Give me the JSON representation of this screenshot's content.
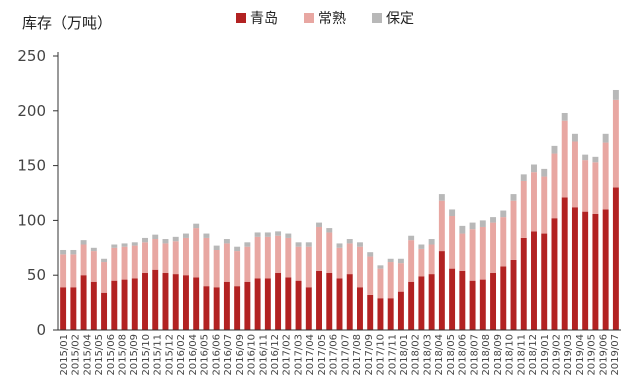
{
  "chart_data": {
    "type": "bar",
    "stacked": true,
    "ylabel": "库存（万吨）",
    "ylim": [
      0,
      250
    ],
    "yticks": [
      0,
      50,
      100,
      150,
      200,
      250
    ],
    "grid": false,
    "legend_position": "top",
    "categories": [
      "2015/01",
      "2015/02",
      "2015/03",
      "2015/04",
      "2015/05",
      "2015/06",
      "2015/07",
      "2015/08",
      "2015/09",
      "2015/10",
      "2015/11",
      "2015/12",
      "2016/01",
      "2016/02",
      "2016/03",
      "2016/04",
      "2016/05",
      "2016/06",
      "2016/07",
      "2016/08",
      "2016/09",
      "2016/10",
      "2016/11",
      "2016/12",
      "2017/01",
      "2017/02",
      "2017/03",
      "2017/04",
      "2017/05",
      "2017/06",
      "2017/07",
      "2017/08",
      "2017/09",
      "2017/10",
      "2017/11",
      "2017/12",
      "2018/01",
      "2018/02",
      "2018/03",
      "2018/04",
      "2018/05",
      "2018/06",
      "2018/07",
      "2018/08",
      "2018/09",
      "2018/10",
      "2018/11",
      "2018/12",
      "2019/01",
      "2019/02",
      "2019/03",
      "2019/04",
      "2019/05",
      "2019/06",
      "2019/07"
    ],
    "xtick_labels": [
      "2015/01",
      "2015/02",
      "2015/04",
      "2015/05",
      "2015/06",
      "2015/08",
      "2015/09",
      "2015/10",
      "2015/11",
      "2015/12",
      "2016/02",
      "2016/04",
      "2016/05",
      "2016/06",
      "2016/07",
      "2016/09",
      "2016/10",
      "2016/11",
      "2016/12",
      "2017/02",
      "2017/03",
      "2017/04",
      "2017/05",
      "2017/06",
      "2017/07",
      "2017/08",
      "2017/09",
      "2017/10",
      "2017/11",
      "2018/01",
      "2018/02",
      "2018/03",
      "2018/04",
      "2018/05",
      "2018/06",
      "2018/07",
      "2018/08",
      "2018/09",
      "2018/10",
      "2018/11",
      "2018/12",
      "2019/01",
      "2019/02",
      "2019/03",
      "2019/04",
      "2019/05",
      "2019/06",
      "2019/07"
    ],
    "series": [
      {
        "name": "青岛",
        "color": "#b22222",
        "values": [
          39,
          39,
          50,
          44,
          34,
          45,
          46,
          47,
          52,
          55,
          52,
          51,
          50,
          48,
          40,
          39,
          44,
          40,
          44,
          47,
          47,
          52,
          48,
          45,
          39,
          54,
          52,
          47,
          51,
          39,
          32,
          29,
          29,
          35,
          44,
          49,
          51,
          72,
          56,
          54,
          45,
          46,
          52,
          58,
          64,
          84,
          90,
          88,
          102,
          121,
          112,
          108,
          106,
          110,
          130
        ]
      },
      {
        "name": "常熟",
        "color": "#e8a7a2",
        "values": [
          30,
          30,
          28,
          28,
          28,
          30,
          30,
          30,
          28,
          28,
          27,
          30,
          34,
          45,
          44,
          34,
          35,
          32,
          32,
          38,
          38,
          34,
          36,
          31,
          37,
          40,
          37,
          28,
          28,
          37,
          35,
          27,
          33,
          26,
          38,
          25,
          27,
          46,
          48,
          34,
          47,
          48,
          46,
          45,
          54,
          52,
          54,
          52,
          59,
          70,
          60,
          47,
          47,
          61,
          80
        ]
      },
      {
        "name": "保定",
        "color": "#b8b8b8",
        "values": [
          4,
          4,
          4,
          3,
          3,
          3,
          3,
          3,
          4,
          4,
          4,
          4,
          4,
          4,
          4,
          4,
          4,
          4,
          4,
          4,
          4,
          4,
          4,
          4,
          4,
          4,
          4,
          4,
          4,
          4,
          4,
          3,
          3,
          4,
          4,
          4,
          5,
          6,
          6,
          7,
          6,
          6,
          5,
          6,
          6,
          6,
          7,
          7,
          7,
          7,
          7,
          5,
          5,
          8,
          9
        ]
      }
    ]
  }
}
